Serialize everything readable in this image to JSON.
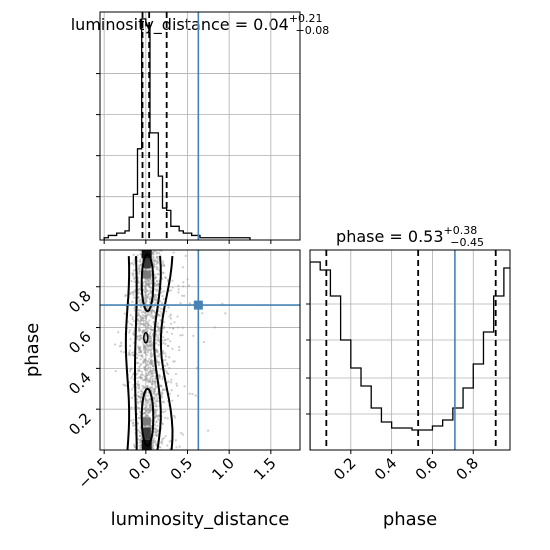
{
  "chart_data": {
    "type": "corner",
    "panels": [
      {
        "id": "luminosity_distance_marginal",
        "type": "step-histogram",
        "title": {
          "main": "luminosity_distance = 0.04",
          "sup": "+0.21",
          "sub": "−0.08"
        },
        "xlim": [
          -0.55,
          1.85
        ],
        "ylim": [
          0,
          1.0
        ],
        "bin_edges": [
          -0.5,
          -0.45,
          -0.4,
          -0.35,
          -0.3,
          -0.25,
          -0.2,
          -0.15,
          -0.1,
          -0.05,
          0.0,
          0.05,
          0.1,
          0.15,
          0.2,
          0.25,
          0.3,
          0.35,
          0.4,
          0.45,
          0.5,
          0.55,
          0.6,
          0.65,
          0.7,
          0.75,
          0.8,
          0.85,
          0.9,
          0.95,
          1.0,
          1.05,
          1.1,
          1.15,
          1.2,
          1.25
        ],
        "counts": [
          0.01,
          0.02,
          0.02,
          0.03,
          0.03,
          0.04,
          0.1,
          0.2,
          0.4,
          0.97,
          0.94,
          0.47,
          0.47,
          0.28,
          0.14,
          0.13,
          0.06,
          0.06,
          0.04,
          0.03,
          0.03,
          0.02,
          0.02,
          0.01,
          0.01,
          0.01,
          0.01,
          0.01,
          0.01,
          0.01,
          0.01,
          0.01,
          0.01,
          0.01,
          0.01
        ],
        "quantiles": [
          -0.04,
          0.04,
          0.25
        ],
        "truth": 0.63
      },
      {
        "id": "phase_marginal",
        "type": "step-histogram",
        "title": {
          "main": "phase = 0.53",
          "sup": "+0.38",
          "sub": "−0.45"
        },
        "xlim": [
          0.0,
          0.98
        ],
        "ylim": [
          0,
          1.0
        ],
        "bin_edges": [
          0.0,
          0.05,
          0.1,
          0.15,
          0.2,
          0.25,
          0.3,
          0.35,
          0.4,
          0.45,
          0.5,
          0.55,
          0.6,
          0.65,
          0.7,
          0.75,
          0.8,
          0.85,
          0.9,
          0.95,
          1.0
        ],
        "counts": [
          0.94,
          0.9,
          0.77,
          0.55,
          0.41,
          0.32,
          0.21,
          0.14,
          0.11,
          0.11,
          0.1,
          0.1,
          0.12,
          0.15,
          0.21,
          0.31,
          0.43,
          0.59,
          0.77,
          0.91
        ],
        "quantiles": [
          0.08,
          0.53,
          0.91
        ],
        "truth": 0.71
      },
      {
        "id": "joint_2d",
        "type": "contour-scatter",
        "xlim": [
          -0.55,
          1.85
        ],
        "ylim": [
          0.0,
          0.98
        ],
        "truth": {
          "x": 0.63,
          "y": 0.71
        }
      }
    ],
    "xlabel_left": "luminosity_distance",
    "xlabel_right": "phase",
    "ylabel": "phase",
    "ticks_luminosity_distance": [
      "−0.5",
      "0.0",
      "0.5",
      "1.0",
      "1.5"
    ],
    "ticks_luminosity_distance_values": [
      -0.5,
      0.0,
      0.5,
      1.0,
      1.5
    ],
    "ticks_phase": [
      "0.2",
      "0.4",
      "0.6",
      "0.8"
    ],
    "ticks_phase_values": [
      0.2,
      0.4,
      0.6,
      0.8
    ],
    "colors": {
      "truth": "#4682b4",
      "hist": "#000000",
      "scatter": "#9a9a9a",
      "grid": "#b0b0b0"
    },
    "grid": true
  }
}
